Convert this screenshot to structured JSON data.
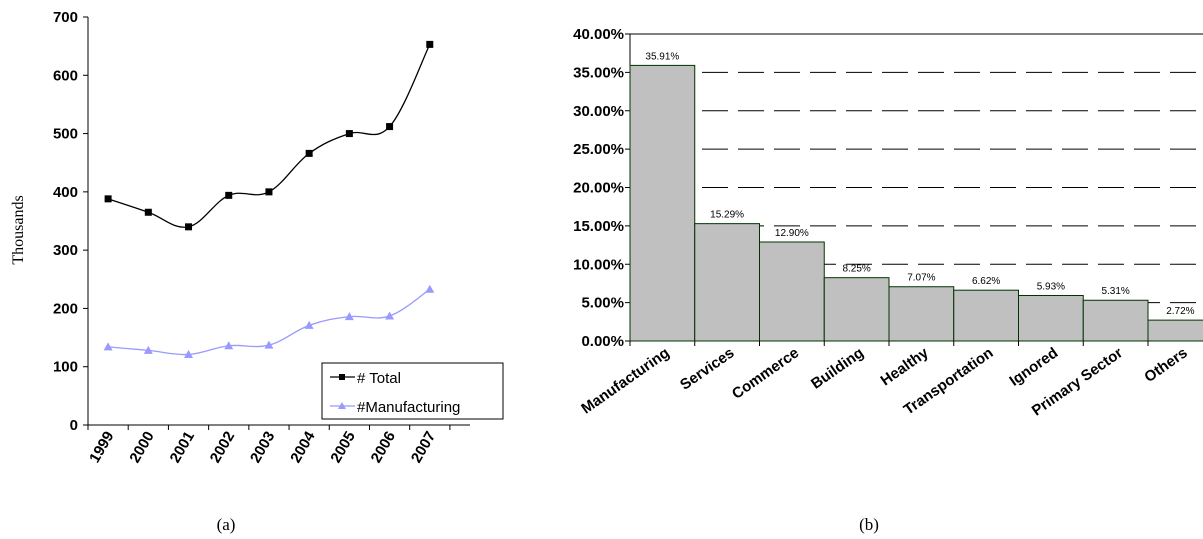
{
  "chart_data": [
    {
      "type": "line",
      "panel_label": "(a)",
      "ylabel": "Thousands",
      "ylim": [
        0,
        700
      ],
      "yticks": [
        "0",
        "100",
        "200",
        "300",
        "400",
        "500",
        "600",
        "700"
      ],
      "categories": [
        "1999",
        "2000",
        "2001",
        "2002",
        "2003",
        "2004",
        "2005",
        "2006",
        "2007"
      ],
      "series": [
        {
          "name": "# Total",
          "values": [
            388,
            365,
            340,
            394,
            400,
            466,
            500,
            512,
            653
          ],
          "color": "#000000",
          "marker": "square"
        },
        {
          "name": "#Manufacturing",
          "values": [
            134,
            128,
            121,
            136,
            137,
            171,
            186,
            187,
            233
          ],
          "color": "#9999ff",
          "marker": "triangle"
        }
      ],
      "legend_position": "bottom-right",
      "grid": false
    },
    {
      "type": "bar",
      "panel_label": "(b)",
      "categories": [
        "Manufacturing",
        "Services",
        "Commerce",
        "Building",
        "Healthy",
        "Transportation",
        "Ignored",
        "Primary Sector",
        "Others"
      ],
      "values": [
        35.91,
        15.29,
        12.9,
        8.25,
        7.07,
        6.62,
        5.93,
        5.31,
        2.72
      ],
      "data_labels": [
        "35.91%",
        "15.29%",
        "12.90%",
        "8.25%",
        "7.07%",
        "6.62%",
        "5.93%",
        "5.31%",
        "2.72%"
      ],
      "ylim": [
        0,
        40
      ],
      "yticks": [
        "0.00%",
        "5.00%",
        "10.00%",
        "15.00%",
        "20.00%",
        "25.00%",
        "30.00%",
        "35.00%",
        "40.00%"
      ],
      "bar_color": "#c0c0c0",
      "bar_edge_color": "#003300",
      "grid": true
    }
  ]
}
